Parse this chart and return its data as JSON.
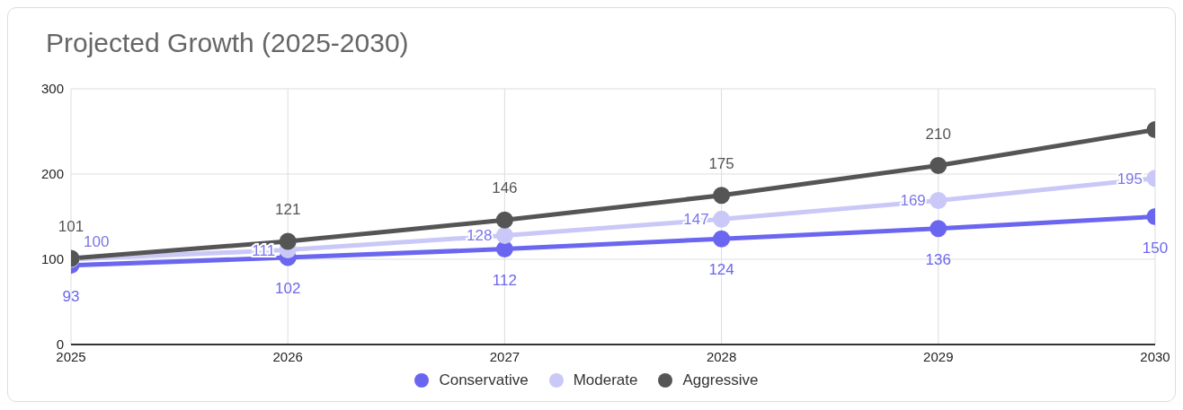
{
  "chart_data": {
    "type": "line",
    "title": "Projected Growth (2025-2030)",
    "x": [
      2025,
      2026,
      2027,
      2028,
      2029,
      2030
    ],
    "xlim": [
      2025,
      2030
    ],
    "xticks": [
      2025,
      2026,
      2027,
      2028,
      2029,
      2030
    ],
    "ylim": [
      0,
      300
    ],
    "yticks": [
      0,
      100,
      200,
      300
    ],
    "grid": true,
    "legend": "bottom",
    "marker": "circle",
    "series": [
      {
        "name": "Conservative",
        "color": "#6b66f0",
        "values": [
          93,
          102,
          112,
          124,
          136,
          150
        ],
        "value_labels": [
          "93",
          "102",
          "112",
          "124",
          "136",
          "150"
        ]
      },
      {
        "name": "Moderate",
        "color": "#c9c8f7",
        "values": [
          100,
          111,
          128,
          147,
          169,
          195
        ],
        "value_labels": [
          "100",
          "111",
          "128",
          "147",
          "169",
          "195"
        ]
      },
      {
        "name": "Aggressive",
        "color": "#555555",
        "values": [
          101,
          121,
          146,
          175,
          210,
          252
        ],
        "value_labels": [
          "101",
          "121",
          "146",
          "175",
          "210",
          null
        ]
      }
    ]
  }
}
